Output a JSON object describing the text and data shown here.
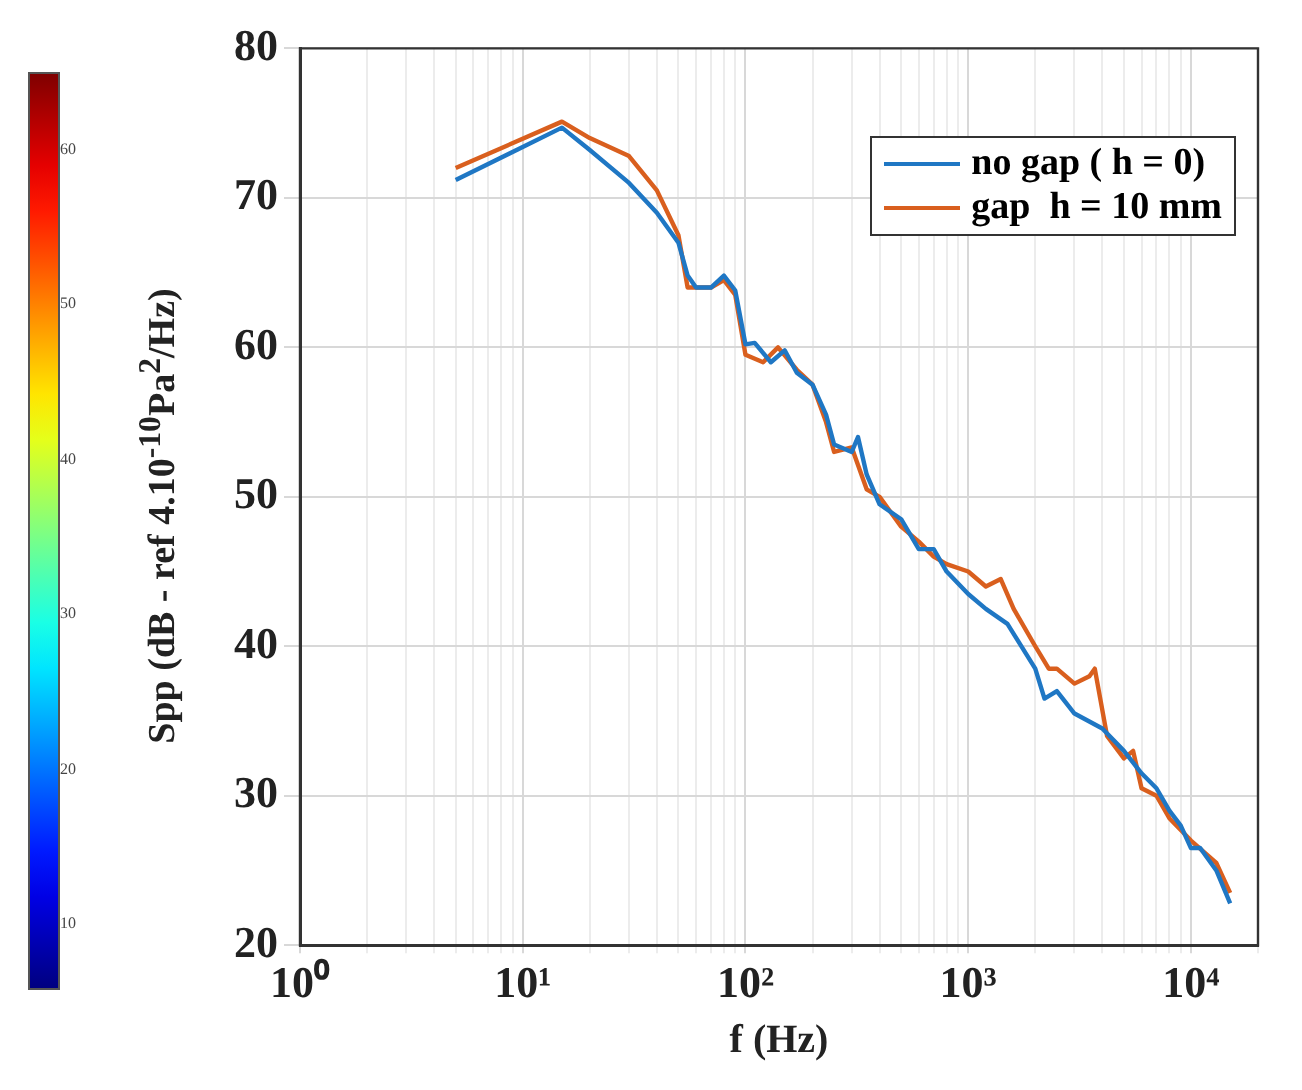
{
  "chart_data": {
    "type": "line",
    "xlabel": "f (Hz)",
    "ylabel": "Spp (dB - ref 4.10$^{-10}$Pa$^{2}$/Hz)",
    "log": "x",
    "xlim": [
      1,
      20000
    ],
    "xticks": [
      {
        "value": 1,
        "label": "10⁰"
      },
      {
        "value": 2,
        "label": null
      },
      {
        "value": 3,
        "label": null
      },
      {
        "value": 4,
        "label": null
      },
      {
        "value": 5,
        "label": null
      },
      {
        "value": 6,
        "label": null
      },
      {
        "value": 7,
        "label": null
      },
      {
        "value": 8,
        "label": null
      },
      {
        "value": 9,
        "label": null
      },
      {
        "value": 10,
        "label": "10¹"
      },
      {
        "value": 20,
        "label": null
      },
      {
        "value": 30,
        "label": null
      },
      {
        "value": 40,
        "label": null
      },
      {
        "value": 50,
        "label": null
      },
      {
        "value": 60,
        "label": null
      },
      {
        "value": 70,
        "label": null
      },
      {
        "value": 80,
        "label": null
      },
      {
        "value": 90,
        "label": null
      },
      {
        "value": 100,
        "label": "10²"
      },
      {
        "value": 200,
        "label": null
      },
      {
        "value": 300,
        "label": null
      },
      {
        "value": 400,
        "label": null
      },
      {
        "value": 500,
        "label": null
      },
      {
        "value": 600,
        "label": null
      },
      {
        "value": 700,
        "label": null
      },
      {
        "value": 800,
        "label": null
      },
      {
        "value": 900,
        "label": null
      },
      {
        "value": 1000,
        "label": "10³"
      },
      {
        "value": 2000,
        "label": null
      },
      {
        "value": 3000,
        "label": null
      },
      {
        "value": 4000,
        "label": null
      },
      {
        "value": 5000,
        "label": null
      },
      {
        "value": 6000,
        "label": null
      },
      {
        "value": 7000,
        "label": null
      },
      {
        "value": 8000,
        "label": null
      },
      {
        "value": 9000,
        "label": null
      },
      {
        "value": 10000,
        "label": "10⁴"
      },
      {
        "value": 20000,
        "label": null
      }
    ],
    "ylim": [
      20,
      80
    ],
    "yticks": [
      20,
      30,
      40,
      50,
      60,
      70,
      80
    ],
    "grid": true,
    "legend": "top right",
    "marker": "none",
    "line_style": "solid",
    "clim": [
      6,
      65
    ],
    "cticks": [
      10,
      20,
      30,
      40,
      50,
      60
    ],
    "series": [
      {
        "name": "no gap ( h = 0)",
        "color": "#1f77c4",
        "x": [
          5,
          15,
          20,
          30,
          40,
          50,
          55,
          60,
          70,
          80,
          90,
          100,
          110,
          130,
          150,
          170,
          200,
          230,
          250,
          300,
          320,
          350,
          400,
          500,
          600,
          700,
          800,
          1000,
          1200,
          1500,
          2000,
          2200,
          2500,
          3000,
          4000,
          5000,
          6000,
          7000,
          8000,
          9000,
          10000,
          11000,
          13000,
          15000
        ],
        "values": [
          71.2,
          74.7,
          73.2,
          71.0,
          69.0,
          67.0,
          64.8,
          64.0,
          64.0,
          64.8,
          63.8,
          60.2,
          60.3,
          59.0,
          59.8,
          58.3,
          57.5,
          55.5,
          53.5,
          53.0,
          54.0,
          51.5,
          49.5,
          48.5,
          46.5,
          46.5,
          45.0,
          43.5,
          42.5,
          41.5,
          38.5,
          36.5,
          37.0,
          35.5,
          34.5,
          33.0,
          31.5,
          30.5,
          29.0,
          28.0,
          26.5,
          26.5,
          25.0,
          22.8
        ]
      },
      {
        "name": "gap  h = 10 mm",
        "color": "#d95f1e",
        "x": [
          5,
          15,
          20,
          30,
          40,
          50,
          55,
          70,
          80,
          90,
          100,
          120,
          140,
          170,
          200,
          230,
          250,
          300,
          350,
          400,
          500,
          600,
          700,
          800,
          1000,
          1200,
          1400,
          1600,
          2000,
          2300,
          2500,
          3000,
          3500,
          3700,
          4200,
          5000,
          5500,
          6000,
          7000,
          8000,
          10000,
          13000,
          15000
        ],
        "values": [
          72.0,
          75.1,
          74.0,
          72.8,
          70.5,
          67.5,
          64.0,
          64.0,
          64.5,
          63.5,
          59.5,
          59.0,
          60.0,
          58.5,
          57.5,
          55.0,
          53.0,
          53.3,
          50.5,
          50.0,
          48.0,
          47.0,
          46.0,
          45.5,
          45.0,
          44.0,
          44.5,
          42.5,
          40.0,
          38.5,
          38.5,
          37.5,
          38.0,
          38.5,
          34.0,
          32.5,
          33.0,
          30.5,
          30.0,
          28.5,
          27.0,
          25.5,
          23.5
        ]
      }
    ]
  }
}
